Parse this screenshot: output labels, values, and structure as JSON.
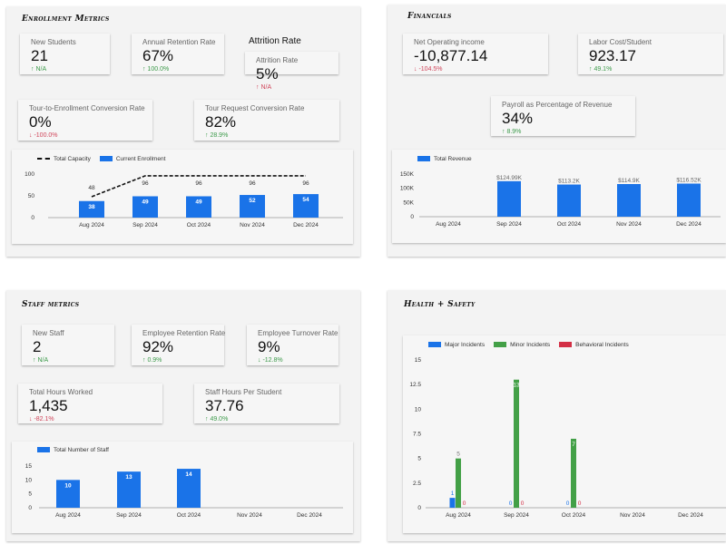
{
  "enrollment": {
    "title": "Enrollment Metrics",
    "attrition_heading": "Attrition Rate",
    "cards": [
      {
        "label": "New Students",
        "value": "21",
        "change": "N/A",
        "direction": "up",
        "tone": "up"
      },
      {
        "label": "Annual Retention Rate",
        "value": "67%",
        "change": "100.0%",
        "direction": "up",
        "tone": "up"
      },
      {
        "label": "Attrition Rate",
        "value": "5%",
        "change": "N/A",
        "direction": "up",
        "tone": "down"
      },
      {
        "label": "Tour-to-Enrollment Conversion Rate",
        "value": "0%",
        "change": "-100.0%",
        "direction": "down",
        "tone": "down"
      },
      {
        "label": "Tour Request Conversion Rate",
        "value": "82%",
        "change": "28.9%",
        "direction": "up",
        "tone": "up"
      }
    ]
  },
  "financials": {
    "title": "Financials",
    "cards": [
      {
        "label": "Net Operating income",
        "value": "-10,877.14",
        "change": "-104.5%",
        "direction": "down",
        "tone": "down"
      },
      {
        "label": "Labor Cost/Student",
        "value": "923.17",
        "change": "49.1%",
        "direction": "up",
        "tone": "up"
      },
      {
        "label": "Payroll as Percentage of Revenue",
        "value": "34%",
        "change": "8.9%",
        "direction": "up",
        "tone": "up"
      }
    ]
  },
  "staff": {
    "title": "Staff metrics",
    "cards": [
      {
        "label": "New Staff",
        "value": "2",
        "change": "N/A",
        "direction": "up",
        "tone": "up"
      },
      {
        "label": "Employee Retention Rate",
        "value": "92%",
        "change": "0.9%",
        "direction": "up",
        "tone": "up"
      },
      {
        "label": "Employee Turnover Rate",
        "value": "9%",
        "change": "-12.8%",
        "direction": "down",
        "tone": "up"
      },
      {
        "label": "Total Hours Worked",
        "value": "1,435",
        "change": "-82.1%",
        "direction": "down",
        "tone": "down"
      },
      {
        "label": "Staff Hours Per Student",
        "value": "37.76",
        "change": "49.0%",
        "direction": "up",
        "tone": "up"
      }
    ]
  },
  "health": {
    "title": "Health + Safety"
  },
  "icons": {
    "up": "arrow-up-icon",
    "down": "arrow-down-icon"
  },
  "chart_data": [
    {
      "type": "bar",
      "categories": [
        "Aug 2024",
        "Sep 2024",
        "Oct 2024",
        "Nov 2024",
        "Dec 2024"
      ],
      "series": [
        {
          "name": "Total Capacity",
          "type": "line",
          "style": "dashed",
          "color": "#111111",
          "values": [
            48,
            96,
            96,
            96,
            96
          ]
        },
        {
          "name": "Current Enrollment",
          "type": "bar",
          "color": "#1a73e8",
          "values": [
            38,
            49,
            49,
            52,
            54
          ]
        }
      ],
      "yticks": [
        "0",
        "50",
        "100"
      ],
      "ylim": [
        0,
        100
      ],
      "legend": "top-left"
    },
    {
      "type": "bar",
      "categories": [
        "Aug 2024",
        "Sep 2024",
        "Oct 2024",
        "Nov 2024",
        "Dec 2024"
      ],
      "series": [
        {
          "name": "Total Revenue",
          "color": "#1a73e8",
          "values": [
            null,
            124.99,
            113.2,
            114.9,
            116.52
          ],
          "labels": [
            "",
            "$124.99K",
            "$113.2K",
            "$114.9K",
            "$116.52K"
          ]
        }
      ],
      "yticks": [
        "0",
        "50K",
        "100K",
        "150K"
      ],
      "ylim": [
        0,
        150
      ],
      "yunit": "K",
      "legend": "top-left"
    },
    {
      "type": "bar",
      "categories": [
        "Aug 2024",
        "Sep 2024",
        "Oct 2024",
        "Nov 2024",
        "Dec 2024"
      ],
      "series": [
        {
          "name": "Total Number of Staff",
          "color": "#1a73e8",
          "values": [
            10,
            13,
            14,
            null,
            null
          ]
        }
      ],
      "yticks": [
        "0",
        "5",
        "10",
        "15"
      ],
      "ylim": [
        0,
        15
      ],
      "legend": "top-left"
    },
    {
      "type": "bar",
      "categories": [
        "Aug 2024",
        "Sep 2024",
        "Oct 2024",
        "Nov 2024",
        "Dec 2024"
      ],
      "series": [
        {
          "name": "Major Incidents",
          "color": "#1a73e8",
          "values": [
            1,
            0,
            0,
            null,
            null
          ]
        },
        {
          "name": "Minor Incidents",
          "color": "#43a047",
          "values": [
            5,
            13,
            7,
            null,
            null
          ]
        },
        {
          "name": "Behavioral Incidents",
          "color": "#d32f45",
          "values": [
            0,
            0,
            0,
            null,
            null
          ]
        }
      ],
      "yticks": [
        "0",
        "2.5",
        "5",
        "7.5",
        "10",
        "12.5",
        "15"
      ],
      "ylim": [
        0,
        15
      ],
      "legend": "top-left"
    }
  ]
}
